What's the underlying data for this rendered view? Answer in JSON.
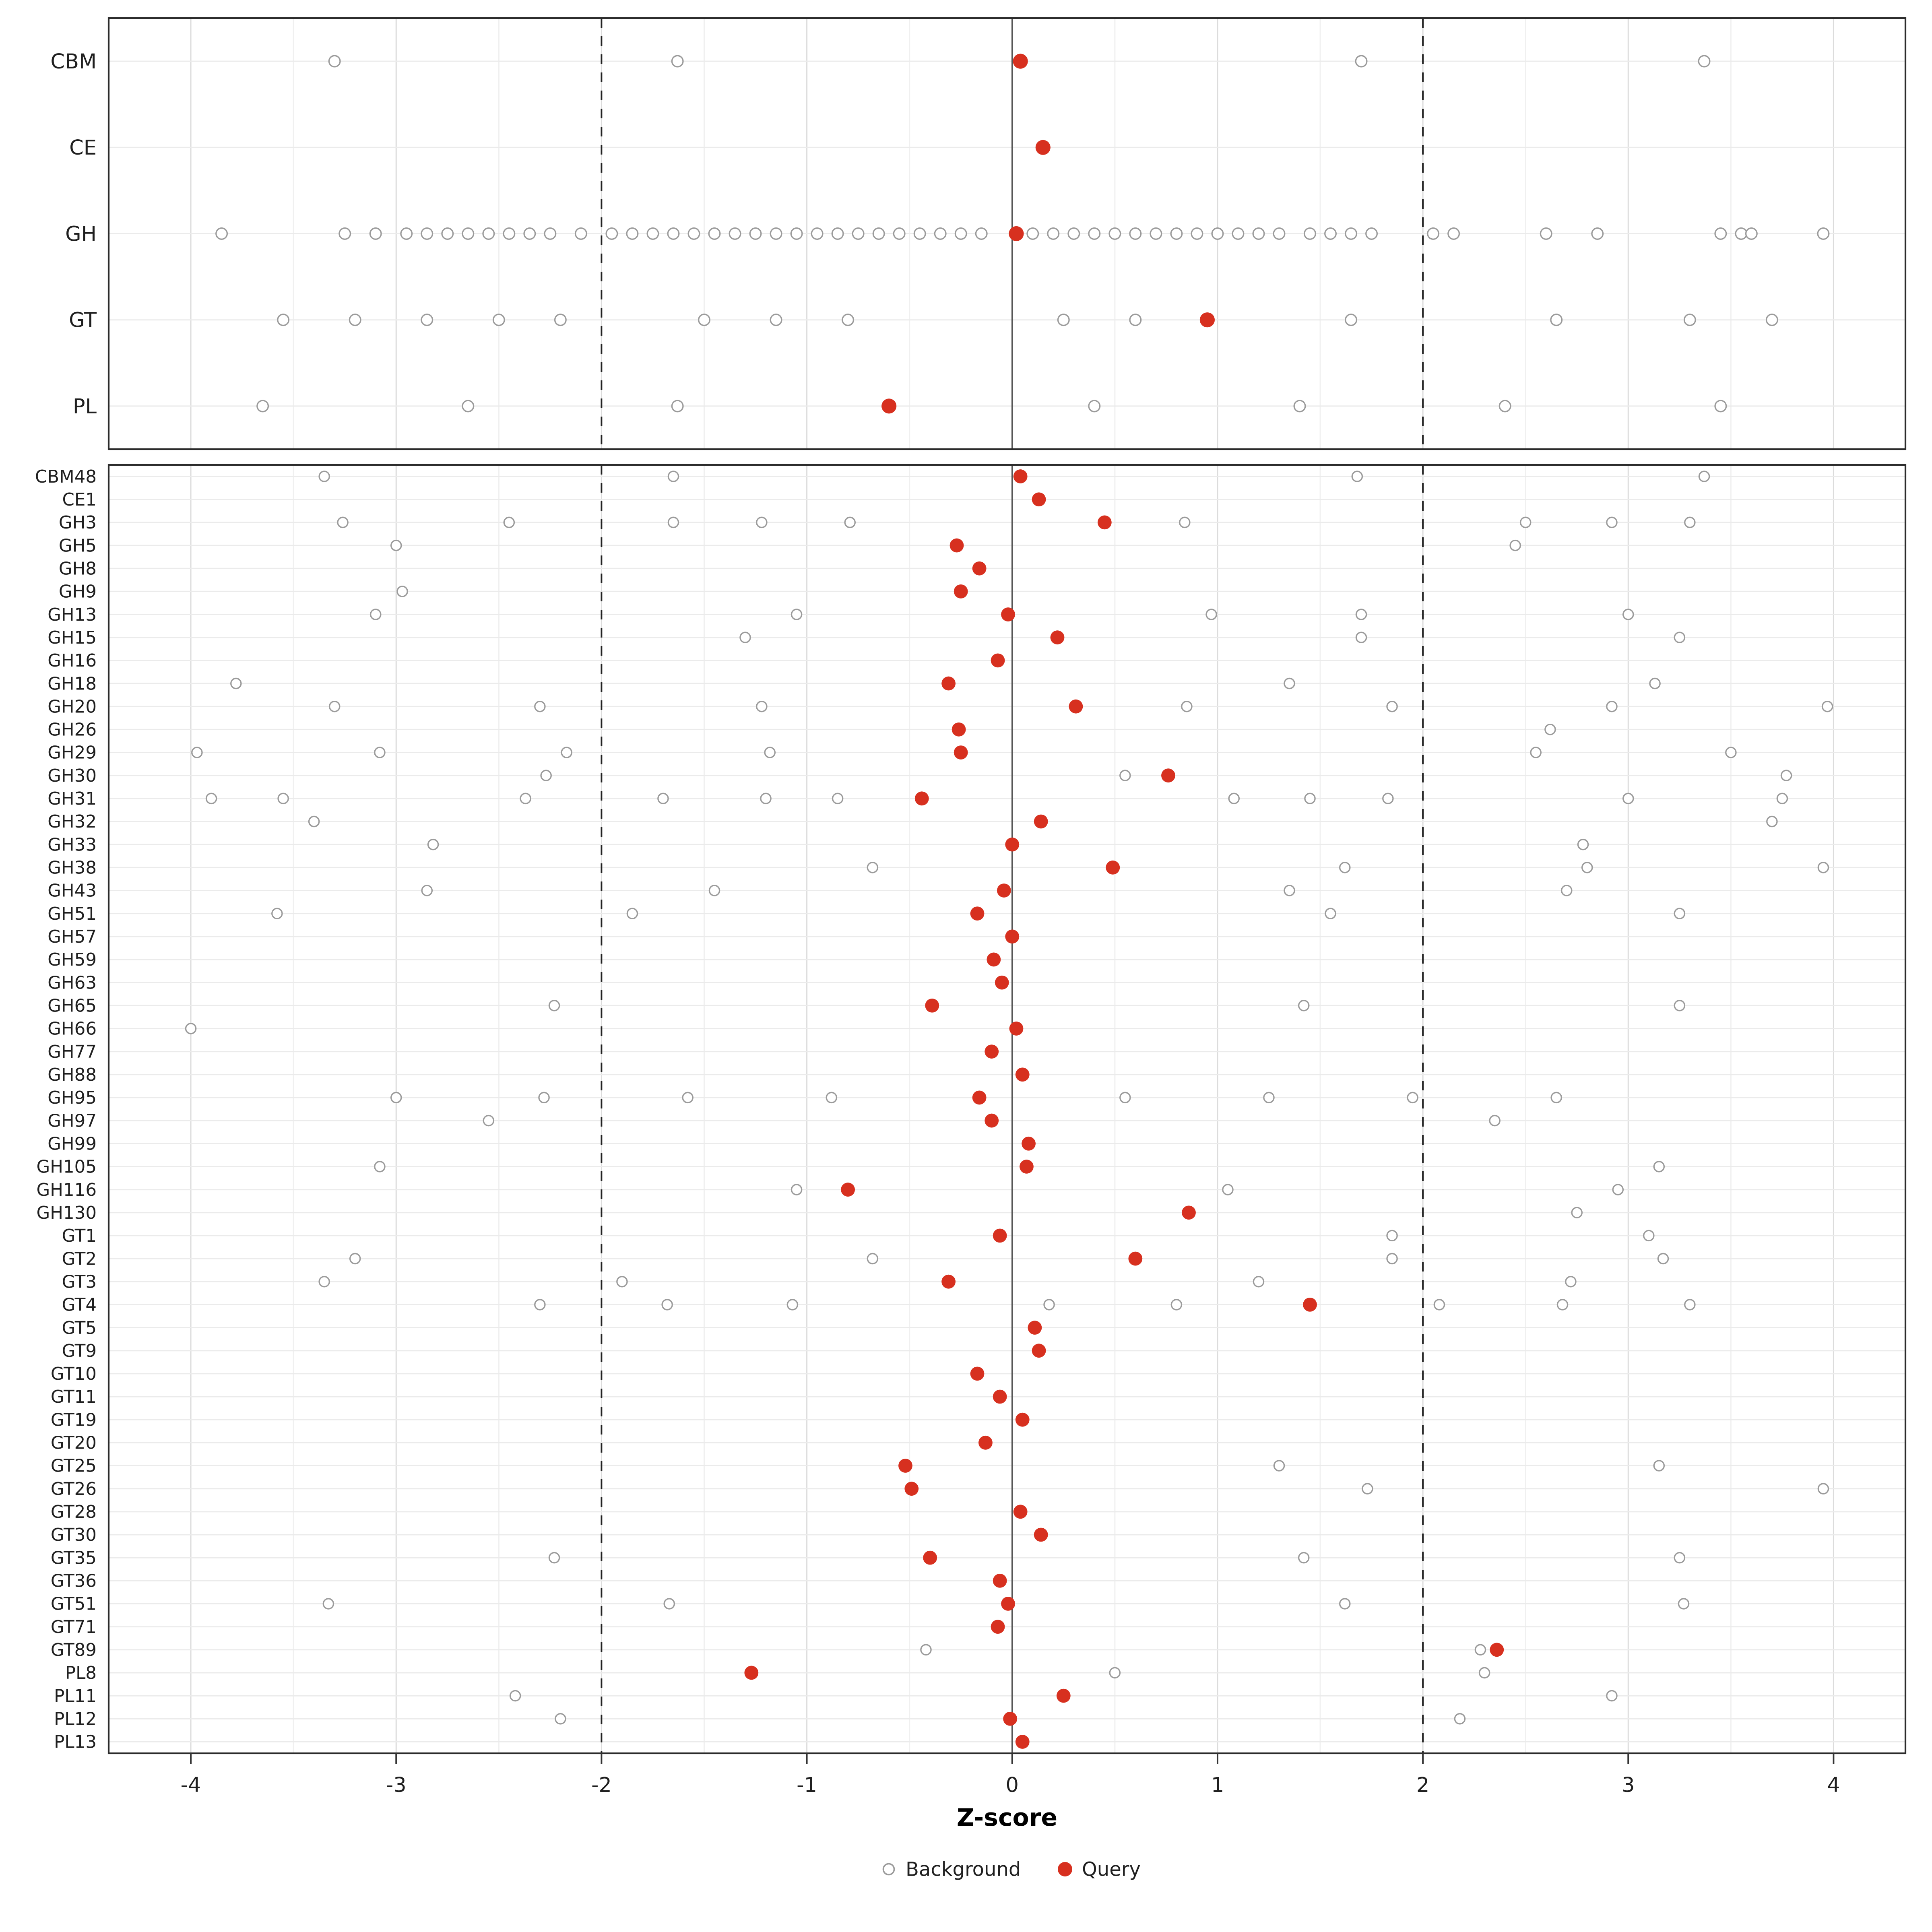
{
  "figure": {
    "xlabel": "Z-score"
  },
  "chart_data": {
    "type": "scatter",
    "title": "",
    "xlabel": "Z-score",
    "ylabel": "",
    "x_ticks": [
      -4,
      -3,
      -2,
      -1,
      0,
      1,
      2,
      3,
      4
    ],
    "xlim": [
      -4.4,
      4.35
    ],
    "grid": true,
    "reference_lines": {
      "solid": [
        0
      ],
      "dashed": [
        -2,
        2
      ]
    },
    "legend_position": "bottom",
    "legend": [
      {
        "label": "Background",
        "style": "open-circle"
      },
      {
        "label": "Query",
        "style": "filled-circle"
      }
    ],
    "colors": {
      "query": "#d7301f",
      "background_stroke": "#9b9b9b",
      "grid_major": "#dcdcdc",
      "grid_minor": "#f0f0f0",
      "row_grid": "#ebebeb",
      "panel_border": "#2b2b2b",
      "zero_line": "#555555",
      "dashed_line": "#222222",
      "axis_text": "#3c3c3c"
    },
    "panels": [
      {
        "name": "class-summary",
        "rows": [
          {
            "label": "CBM",
            "bg": [
              -3.3,
              -1.63,
              1.7,
              3.37
            ],
            "q": 0.04
          },
          {
            "label": "CE",
            "bg": [],
            "q": 0.15
          },
          {
            "label": "GH",
            "bg": [
              -3.85,
              -3.25,
              -3.1,
              -2.95,
              -2.85,
              -2.75,
              -2.65,
              -2.55,
              -2.45,
              -2.35,
              -2.25,
              -2.1,
              -1.95,
              -1.85,
              -1.75,
              -1.65,
              -1.55,
              -1.45,
              -1.35,
              -1.25,
              -1.15,
              -1.05,
              -0.95,
              -0.85,
              -0.75,
              -0.65,
              -0.55,
              -0.45,
              -0.35,
              -0.25,
              -0.15,
              0.1,
              0.2,
              0.3,
              0.4,
              0.5,
              0.6,
              0.7,
              0.8,
              0.9,
              1.0,
              1.1,
              1.2,
              1.3,
              1.45,
              1.55,
              1.65,
              1.75,
              2.05,
              2.15,
              2.6,
              2.85,
              3.45,
              3.55,
              3.6,
              3.95
            ],
            "q": 0.02
          },
          {
            "label": "GT",
            "bg": [
              -3.55,
              -3.2,
              -2.85,
              -2.5,
              -2.2,
              -1.5,
              -1.15,
              -0.8,
              0.25,
              0.6,
              1.65,
              2.65,
              3.3,
              3.7
            ],
            "q": 0.95
          },
          {
            "label": "PL",
            "bg": [
              -3.65,
              -2.65,
              -1.63,
              0.4,
              1.4,
              2.4,
              3.45
            ],
            "q": -0.6
          }
        ]
      },
      {
        "name": "family-detail",
        "rows": [
          {
            "label": "CBM48",
            "bg": [
              -3.35,
              -1.65,
              1.68,
              3.37
            ],
            "q": 0.04
          },
          {
            "label": "CE1",
            "bg": [],
            "q": 0.13
          },
          {
            "label": "GH3",
            "bg": [
              -3.26,
              -2.45,
              -1.65,
              -1.22,
              -0.79,
              0.84,
              2.5,
              2.92,
              3.3
            ],
            "q": 0.45
          },
          {
            "label": "GH5",
            "bg": [
              -3.0,
              2.45
            ],
            "q": -0.27
          },
          {
            "label": "GH8",
            "bg": [],
            "q": -0.16
          },
          {
            "label": "GH9",
            "bg": [
              -2.97
            ],
            "q": -0.25
          },
          {
            "label": "GH13",
            "bg": [
              -3.1,
              -1.05,
              0.97,
              1.7,
              3.0
            ],
            "q": -0.02
          },
          {
            "label": "GH15",
            "bg": [
              -1.3,
              1.7,
              3.25
            ],
            "q": 0.22
          },
          {
            "label": "GH16",
            "bg": [],
            "q": -0.07
          },
          {
            "label": "GH18",
            "bg": [
              -3.78,
              1.35,
              3.13
            ],
            "q": -0.31
          },
          {
            "label": "GH20",
            "bg": [
              -3.3,
              -2.3,
              -1.22,
              0.85,
              1.85,
              2.92,
              3.97
            ],
            "q": 0.31
          },
          {
            "label": "GH26",
            "bg": [
              2.62
            ],
            "q": -0.26
          },
          {
            "label": "GH29",
            "bg": [
              -3.97,
              -3.08,
              -2.17,
              -1.18,
              2.55,
              3.5
            ],
            "q": -0.25
          },
          {
            "label": "GH30",
            "bg": [
              -2.27,
              0.55,
              3.77
            ],
            "q": 0.76
          },
          {
            "label": "GH31",
            "bg": [
              -3.9,
              -3.55,
              -2.37,
              -1.7,
              -1.2,
              -0.85,
              1.08,
              1.45,
              1.83,
              3.0,
              3.75
            ],
            "q": -0.44
          },
          {
            "label": "GH32",
            "bg": [
              -3.4,
              3.7
            ],
            "q": 0.14
          },
          {
            "label": "GH33",
            "bg": [
              -2.82,
              2.78
            ],
            "q": 0.0
          },
          {
            "label": "GH38",
            "bg": [
              -0.68,
              1.62,
              2.8,
              3.95
            ],
            "q": 0.49
          },
          {
            "label": "GH43",
            "bg": [
              -2.85,
              -1.45,
              1.35,
              2.7
            ],
            "q": -0.04
          },
          {
            "label": "GH51",
            "bg": [
              -3.58,
              -1.85,
              1.55,
              3.25
            ],
            "q": -0.17
          },
          {
            "label": "GH57",
            "bg": [],
            "q": 0.0
          },
          {
            "label": "GH59",
            "bg": [],
            "q": -0.09
          },
          {
            "label": "GH63",
            "bg": [],
            "q": -0.05
          },
          {
            "label": "GH65",
            "bg": [
              -2.23,
              1.42,
              3.25
            ],
            "q": -0.39
          },
          {
            "label": "GH66",
            "bg": [
              -4.0
            ],
            "q": 0.02
          },
          {
            "label": "GH77",
            "bg": [],
            "q": -0.1
          },
          {
            "label": "GH88",
            "bg": [],
            "q": 0.05
          },
          {
            "label": "GH95",
            "bg": [
              -3.0,
              -2.28,
              -1.58,
              -0.88,
              0.55,
              1.25,
              1.95,
              2.65
            ],
            "q": -0.16
          },
          {
            "label": "GH97",
            "bg": [
              -2.55,
              2.35
            ],
            "q": -0.1
          },
          {
            "label": "GH99",
            "bg": [],
            "q": 0.08
          },
          {
            "label": "GH105",
            "bg": [
              -3.08,
              3.15
            ],
            "q": 0.07
          },
          {
            "label": "GH116",
            "bg": [
              -1.05,
              1.05,
              2.95
            ],
            "q": -0.8
          },
          {
            "label": "GH130",
            "bg": [
              2.75
            ],
            "q": 0.86
          },
          {
            "label": "GT1",
            "bg": [
              1.85,
              3.1
            ],
            "q": -0.06
          },
          {
            "label": "GT2",
            "bg": [
              -3.2,
              -0.68,
              1.85,
              3.17
            ],
            "q": 0.6
          },
          {
            "label": "GT3",
            "bg": [
              -3.35,
              -1.9,
              1.2,
              2.72
            ],
            "q": -0.31
          },
          {
            "label": "GT4",
            "bg": [
              -2.3,
              -1.68,
              -1.07,
              0.18,
              0.8,
              2.08,
              2.68,
              3.3
            ],
            "q": 1.45
          },
          {
            "label": "GT5",
            "bg": [],
            "q": 0.11
          },
          {
            "label": "GT9",
            "bg": [],
            "q": 0.13
          },
          {
            "label": "GT10",
            "bg": [],
            "q": -0.17
          },
          {
            "label": "GT11",
            "bg": [],
            "q": -0.06
          },
          {
            "label": "GT19",
            "bg": [],
            "q": 0.05
          },
          {
            "label": "GT20",
            "bg": [],
            "q": -0.13
          },
          {
            "label": "GT25",
            "bg": [
              1.3,
              3.15
            ],
            "q": -0.52
          },
          {
            "label": "GT26",
            "bg": [
              1.73,
              3.95
            ],
            "q": -0.49
          },
          {
            "label": "GT28",
            "bg": [],
            "q": 0.04
          },
          {
            "label": "GT30",
            "bg": [],
            "q": 0.14
          },
          {
            "label": "GT35",
            "bg": [
              -2.23,
              1.42,
              3.25
            ],
            "q": -0.4
          },
          {
            "label": "GT36",
            "bg": [],
            "q": -0.06
          },
          {
            "label": "GT51",
            "bg": [
              -3.33,
              -1.67,
              1.62,
              3.27
            ],
            "q": -0.02
          },
          {
            "label": "GT71",
            "bg": [],
            "q": -0.07
          },
          {
            "label": "GT89",
            "bg": [
              -0.42,
              2.28
            ],
            "q": 2.36
          },
          {
            "label": "PL8",
            "bg": [
              0.5,
              2.3
            ],
            "q": -1.27
          },
          {
            "label": "PL11",
            "bg": [
              -2.42,
              2.92
            ],
            "q": 0.25
          },
          {
            "label": "PL12",
            "bg": [
              -2.2,
              2.18
            ],
            "q": -0.01
          },
          {
            "label": "PL13",
            "bg": [],
            "q": 0.05
          }
        ]
      }
    ]
  }
}
